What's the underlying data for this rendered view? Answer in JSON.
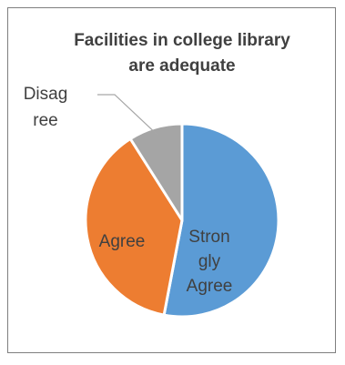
{
  "chart_data": {
    "type": "pie",
    "title_lines": [
      "Facilities in college library",
      "are adequate"
    ],
    "categories": [
      "Strongly Agree",
      "Agree",
      "Disagree"
    ],
    "values": [
      53,
      38,
      9
    ],
    "colors": [
      "#5b9bd5",
      "#ed7d31",
      "#a5a5a5"
    ],
    "slice_labels": [
      [
        "Stron",
        "gly",
        "Agree"
      ],
      [
        "Agree"
      ],
      [
        "Disag",
        "ree"
      ]
    ],
    "legend": "none"
  }
}
